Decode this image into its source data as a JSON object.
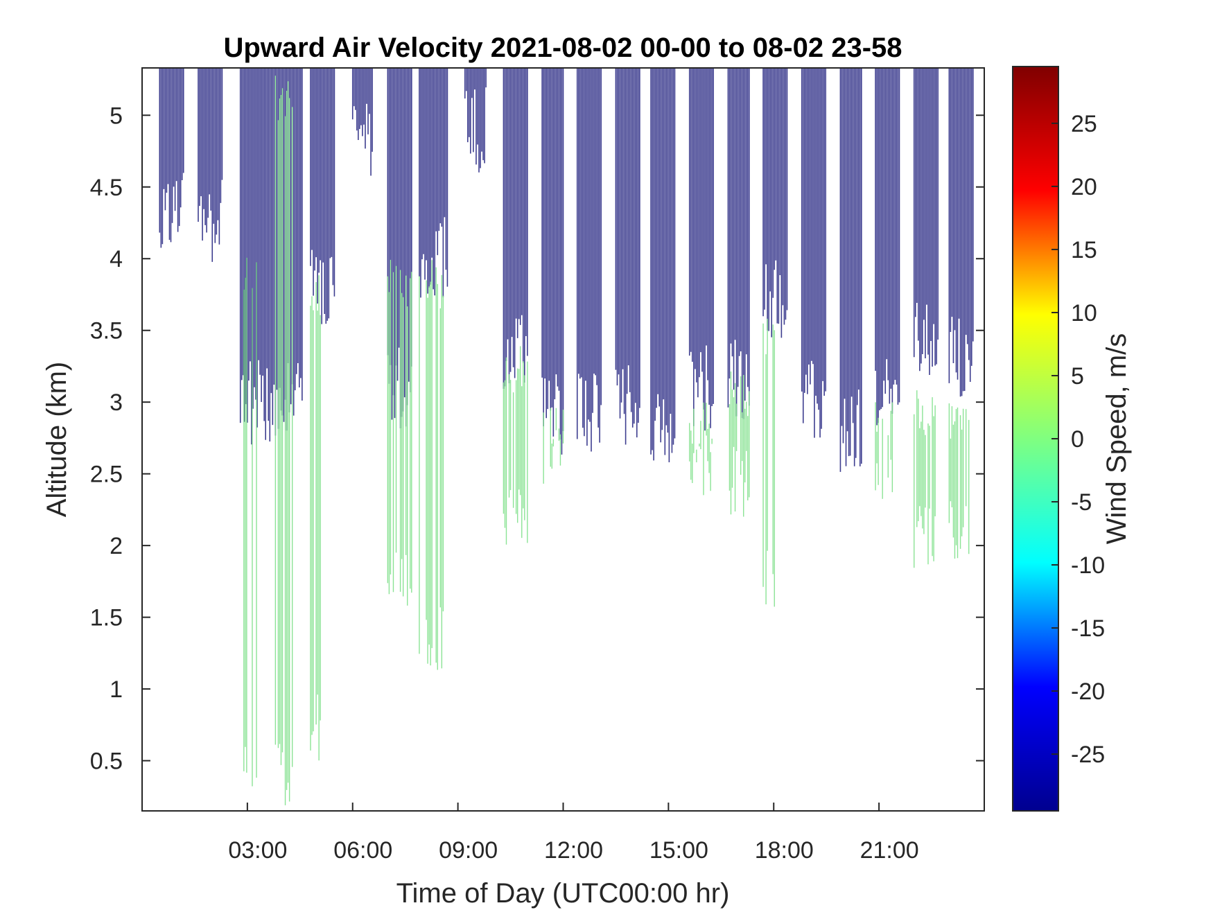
{
  "chart_data": {
    "type": "heatmap",
    "title": "Upward Air Velocity 2021-08-02 00-00 to 08-02 23-58",
    "xlabel": "Time of Day (UTC00:00 hr)",
    "ylabel": "Altitude (km)",
    "colorbar_label": "Wind Speed, m/s",
    "xlim_hours": [
      0,
      24
    ],
    "ylim_km": [
      0.15,
      5.33
    ],
    "x_ticks": [
      {
        "value": 3,
        "label": "03:00"
      },
      {
        "value": 6,
        "label": "06:00"
      },
      {
        "value": 9,
        "label": "09:00"
      },
      {
        "value": 12,
        "label": "12:00"
      },
      {
        "value": 15,
        "label": "15:00"
      },
      {
        "value": 18,
        "label": "18:00"
      },
      {
        "value": 21,
        "label": "21:00"
      }
    ],
    "y_ticks": [
      {
        "value": 0.5,
        "label": "0.5"
      },
      {
        "value": 1,
        "label": "1"
      },
      {
        "value": 1.5,
        "label": "1.5"
      },
      {
        "value": 2,
        "label": "2"
      },
      {
        "value": 2.5,
        "label": "2.5"
      },
      {
        "value": 3,
        "label": "3"
      },
      {
        "value": 3.5,
        "label": "3.5"
      },
      {
        "value": 4,
        "label": "4"
      },
      {
        "value": 4.5,
        "label": "4.5"
      },
      {
        "value": 5,
        "label": "5"
      }
    ],
    "colorbar_range": [
      -29.5,
      29.5
    ],
    "colorbar_ticks": [
      {
        "value": 25,
        "label": "25"
      },
      {
        "value": 20,
        "label": "20"
      },
      {
        "value": 15,
        "label": "15"
      },
      {
        "value": 10,
        "label": "10"
      },
      {
        "value": 5,
        "label": "5"
      },
      {
        "value": 0,
        "label": "0"
      },
      {
        "value": -5,
        "label": "-5"
      },
      {
        "value": -10,
        "label": "-10"
      },
      {
        "value": -15,
        "label": "-15"
      },
      {
        "value": -20,
        "label": "-20"
      },
      {
        "value": -25,
        "label": "-25"
      }
    ],
    "colormap": "jet",
    "colormap_stops": [
      "#00008f",
      "#0000ff",
      "#00ffff",
      "#80ff80",
      "#ffff00",
      "#ff0000",
      "#800000"
    ],
    "colors": {
      "low_velocity": "#3d3d8f",
      "near_zero": "#7fe08a"
    },
    "velocity_bursts": [
      {
        "x": [
          0.5,
          1.2
        ],
        "bottom": 4.35
      },
      {
        "x": [
          1.6,
          2.3
        ],
        "bottom": 4.25
      },
      {
        "x": [
          2.8,
          4.6
        ],
        "bottom": 3.0
      },
      {
        "x": [
          4.8,
          5.5
        ],
        "bottom": 3.8
      },
      {
        "x": [
          6.0,
          6.6
        ],
        "bottom": 4.8
      },
      {
        "x": [
          7.0,
          7.7
        ],
        "bottom": 3.1
      },
      {
        "x": [
          7.9,
          8.7
        ],
        "bottom": 4.0
      },
      {
        "x": [
          9.2,
          9.8
        ],
        "bottom": 4.9
      },
      {
        "x": [
          10.3,
          11.0
        ],
        "bottom": 3.35
      },
      {
        "x": [
          11.4,
          12.0
        ],
        "bottom": 2.9
      },
      {
        "x": [
          12.4,
          13.1
        ],
        "bottom": 2.9
      },
      {
        "x": [
          13.5,
          14.2
        ],
        "bottom": 3.0
      },
      {
        "x": [
          14.5,
          15.2
        ],
        "bottom": 2.85
      },
      {
        "x": [
          15.6,
          16.3
        ],
        "bottom": 3.1
      },
      {
        "x": [
          16.7,
          17.3
        ],
        "bottom": 3.15
      },
      {
        "x": [
          17.7,
          18.4
        ],
        "bottom": 3.7
      },
      {
        "x": [
          18.8,
          19.5
        ],
        "bottom": 3.0
      },
      {
        "x": [
          19.9,
          20.5
        ],
        "bottom": 2.8
      },
      {
        "x": [
          20.9,
          21.6
        ],
        "bottom": 3.0
      },
      {
        "x": [
          22.0,
          22.7
        ],
        "bottom": 3.4
      },
      {
        "x": [
          23.0,
          23.7
        ],
        "bottom": 3.3
      }
    ],
    "near_zero_bursts": [
      {
        "x": [
          2.9,
          3.3
        ],
        "top": 4.1,
        "bottom": 0.15
      },
      {
        "x": [
          3.8,
          4.3
        ],
        "top": 5.3,
        "bottom": 0.15
      },
      {
        "x": [
          4.8,
          5.1
        ],
        "top": 3.9,
        "bottom": 0.5
      },
      {
        "x": [
          7.0,
          7.7
        ],
        "top": 4.0,
        "bottom": 1.5
      },
      {
        "x": [
          7.9,
          8.6
        ],
        "top": 4.0,
        "bottom": 1.1
      },
      {
        "x": [
          10.3,
          11.0
        ],
        "top": 3.4,
        "bottom": 1.9
      },
      {
        "x": [
          11.4,
          12.0
        ],
        "top": 3.0,
        "bottom": 2.4
      },
      {
        "x": [
          15.6,
          16.3
        ],
        "top": 3.0,
        "bottom": 2.3
      },
      {
        "x": [
          16.7,
          17.3
        ],
        "top": 3.25,
        "bottom": 2.2
      },
      {
        "x": [
          17.7,
          18.1
        ],
        "top": 3.6,
        "bottom": 1.5
      },
      {
        "x": [
          20.9,
          21.4
        ],
        "top": 3.0,
        "bottom": 2.3
      },
      {
        "x": [
          22.0,
          22.6
        ],
        "top": 3.1,
        "bottom": 1.8
      },
      {
        "x": [
          23.0,
          23.6
        ],
        "top": 3.0,
        "bottom": 1.9
      }
    ]
  }
}
